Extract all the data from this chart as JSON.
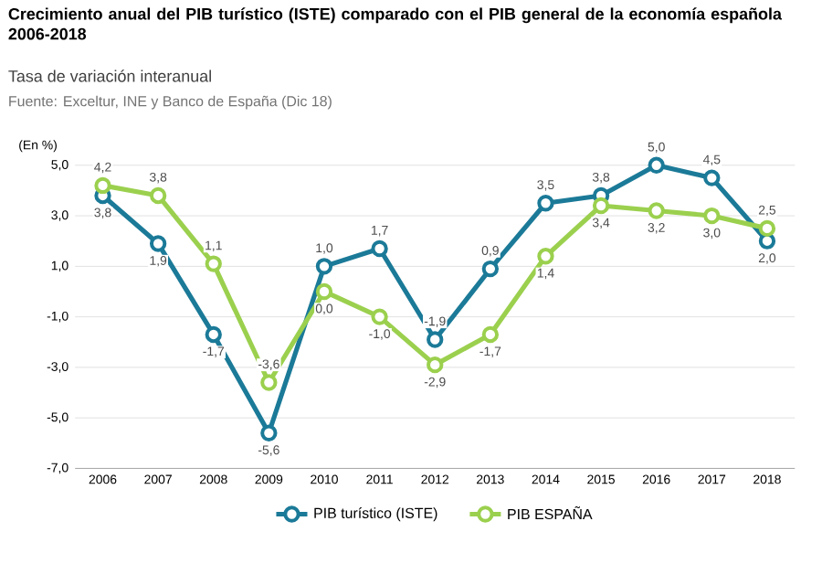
{
  "chart_data": {
    "type": "line",
    "title": "Crecimiento anual del PIB turístico (ISTE) comparado con el PIB general de la economía española 2006-2018",
    "subtitle": "Tasa de variación interanual",
    "annotations": [
      "Fuente:  Exceltur, INE y Banco de España (Dic 18)"
    ],
    "ylabel": "(En %)",
    "categories": [
      "2006",
      "2007",
      "2008",
      "2009",
      "2010",
      "2011",
      "2012",
      "2013",
      "2014",
      "2015",
      "2016",
      "2017",
      "2018"
    ],
    "series": [
      {
        "name": "PIB turístico (ISTE)",
        "color": "#1b7a98",
        "values": [
          3.8,
          1.9,
          -1.7,
          -5.6,
          1.0,
          1.7,
          -1.9,
          0.9,
          3.5,
          3.8,
          5.0,
          4.5,
          2.0
        ],
        "value_labels": [
          "3,8",
          "1,9",
          "-1,7",
          "-5,6",
          "1,0",
          "1,7",
          "-1,9",
          "0,9",
          "3,5",
          "3,8",
          "5,0",
          "4,5",
          "2,0"
        ]
      },
      {
        "name": "PIB ESPAÑA",
        "color": "#9bd04e",
        "values": [
          4.2,
          3.8,
          1.1,
          -3.6,
          0.0,
          -1.0,
          -2.9,
          -1.7,
          1.4,
          3.4,
          3.2,
          3.0,
          2.5
        ],
        "value_labels": [
          "4,2",
          "3,8",
          "1,1",
          "-3,6",
          "0,0",
          "-1,0",
          "-2,9",
          "-1,7",
          "1,4",
          "3,4",
          "3,2",
          "3,0",
          "2,5"
        ]
      }
    ],
    "ylim": [
      -7,
      5
    ],
    "yticks": [
      {
        "value": 5,
        "label": "5,0"
      },
      {
        "value": 3,
        "label": "3,0"
      },
      {
        "value": 1,
        "label": "1,0"
      },
      {
        "value": -1,
        "label": "-1,0"
      },
      {
        "value": -3,
        "label": "-3,0"
      },
      {
        "value": -5,
        "label": "-5,0"
      },
      {
        "value": -7,
        "label": "-7,0"
      }
    ],
    "grid": "y",
    "legend": "bottom",
    "marker": "circle",
    "line_style": "solid"
  }
}
